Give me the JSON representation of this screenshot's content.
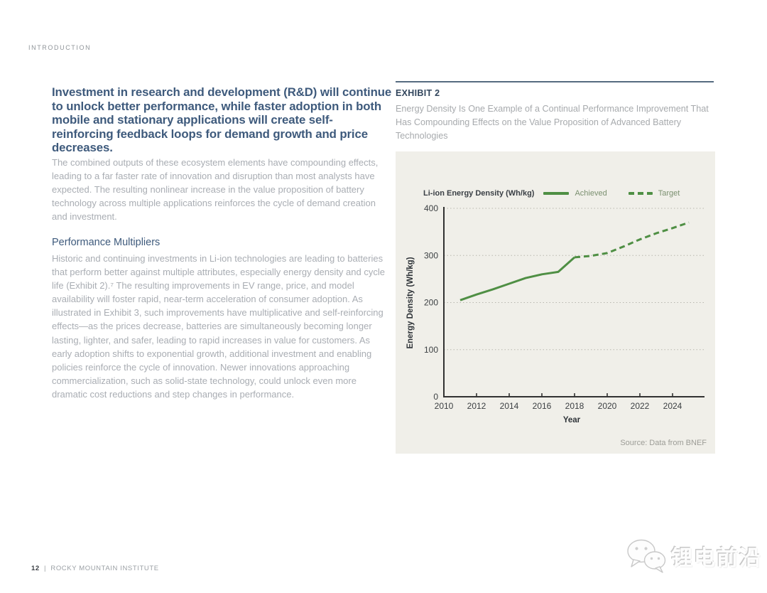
{
  "page": {
    "eyebrow": "INTRODUCTION",
    "footer": {
      "page_number": "12",
      "separator": "|",
      "institute": "ROCKY MOUNTAIN INSTITUTE"
    },
    "watermark": {
      "text": "锂电前沿",
      "icon": "wechat-icon"
    }
  },
  "left_column": {
    "heading": "Investment in research and development (R&D) will continue to unlock better performance, while faster adoption in both mobile and stationary applications will create self-reinforcing feedback loops for demand growth and price decreases.",
    "paragraph1": "The combined outputs of these ecosystem elements have compounding effects, leading to a far faster rate of innovation and disruption than most analysts have expected. The resulting nonlinear increase in the value proposition of battery technology across multiple applications reinforces the cycle of demand creation and investment.",
    "subheading": "Performance Multipliers",
    "paragraph2": "Historic and continuing investments in Li-ion technologies are leading to batteries that perform better against multiple attributes, especially energy density and cycle life (Exhibit 2).⁷ The resulting improvements in EV range, price, and model availability will foster rapid, near-term acceleration of consumer adoption. As illustrated in Exhibit 3, such improvements have multiplicative and self-reinforcing effects—as the prices decrease, batteries are simultaneously becoming longer lasting, lighter, and safer, leading to rapid increases in value for customers. As early adoption shifts to exponential growth, additional investment and enabling policies reinforce the cycle of innovation. Newer innovations approaching commercialization, such as solid-state technology, could unlock even more dramatic cost reductions and step changes in performance."
  },
  "exhibit": {
    "label": "EXHIBIT 2",
    "caption": "Energy Density Is One Example of a Continual Performance Improvement That Has Compounding Effects on the Value Proposition of Advanced Battery Technologies"
  },
  "chart_data": {
    "type": "line",
    "title": "Li-ion Energy Density (Wh/kg)",
    "xlabel": "Year",
    "ylabel": "Energy Density (Wh/kg)",
    "xlim": [
      2010,
      2026
    ],
    "ylim": [
      0,
      400
    ],
    "x_ticks": [
      2010,
      2012,
      2014,
      2016,
      2018,
      2020,
      2022,
      2024
    ],
    "y_ticks": [
      0,
      100,
      200,
      300,
      400
    ],
    "grid": "horizontal-dotted",
    "legend_position": "top",
    "series": [
      {
        "name": "Achieved",
        "style": "solid",
        "color": "#4f8f44",
        "x": [
          2011,
          2012,
          2013,
          2014,
          2015,
          2016,
          2017,
          2018
        ],
        "values": [
          205,
          217,
          228,
          240,
          252,
          260,
          265,
          296
        ]
      },
      {
        "name": "Target",
        "style": "dashed",
        "color": "#4f8f44",
        "x": [
          2018,
          2019,
          2020,
          2021,
          2022,
          2023,
          2024,
          2025
        ],
        "values": [
          296,
          299,
          305,
          319,
          334,
          347,
          358,
          370
        ]
      }
    ],
    "source_note": "Source: Data from BNEF"
  },
  "colors": {
    "accent_green": "#4f8f44",
    "heading_navy": "#3e5a7c",
    "body_gray": "#a9adb3",
    "chart_background": "#f0efe9"
  }
}
